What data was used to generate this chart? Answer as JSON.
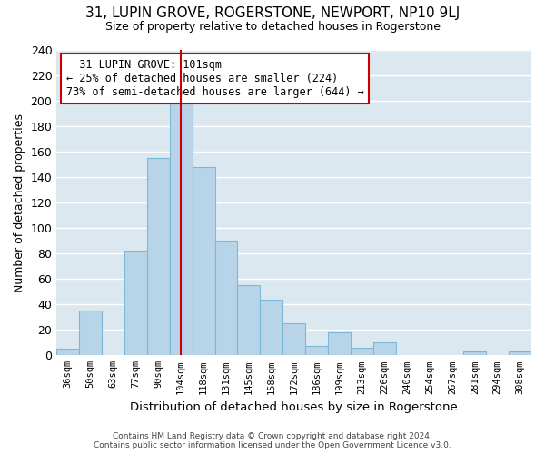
{
  "title": "31, LUPIN GROVE, ROGERSTONE, NEWPORT, NP10 9LJ",
  "subtitle": "Size of property relative to detached houses in Rogerstone",
  "xlabel": "Distribution of detached houses by size in Rogerstone",
  "ylabel": "Number of detached properties",
  "categories": [
    "36sqm",
    "50sqm",
    "63sqm",
    "77sqm",
    "90sqm",
    "104sqm",
    "118sqm",
    "131sqm",
    "145sqm",
    "158sqm",
    "172sqm",
    "186sqm",
    "199sqm",
    "213sqm",
    "226sqm",
    "240sqm",
    "254sqm",
    "267sqm",
    "281sqm",
    "294sqm",
    "308sqm"
  ],
  "values": [
    5,
    35,
    0,
    82,
    155,
    200,
    148,
    90,
    55,
    44,
    25,
    7,
    18,
    6,
    10,
    0,
    0,
    0,
    3,
    0,
    3
  ],
  "bar_color": "#b8d4e8",
  "bar_edge_color": "#7eb8d8",
  "marker_idx": 5,
  "marker_label": "31 LUPIN GROVE: 101sqm",
  "marker_pct_smaller": "25% of detached houses are smaller (224)",
  "marker_pct_larger": "73% of semi-detached houses are larger (644)",
  "marker_line_color": "#cc0000",
  "annotation_box_edge_color": "#cc0000",
  "ylim": [
    0,
    240
  ],
  "yticks": [
    0,
    20,
    40,
    60,
    80,
    100,
    120,
    140,
    160,
    180,
    200,
    220,
    240
  ],
  "grid_color": "#ffffff",
  "plot_bg_color": "#dce8f0",
  "fig_bg_color": "#ffffff",
  "footer_line1": "Contains HM Land Registry data © Crown copyright and database right 2024.",
  "footer_line2": "Contains public sector information licensed under the Open Government Licence v3.0."
}
